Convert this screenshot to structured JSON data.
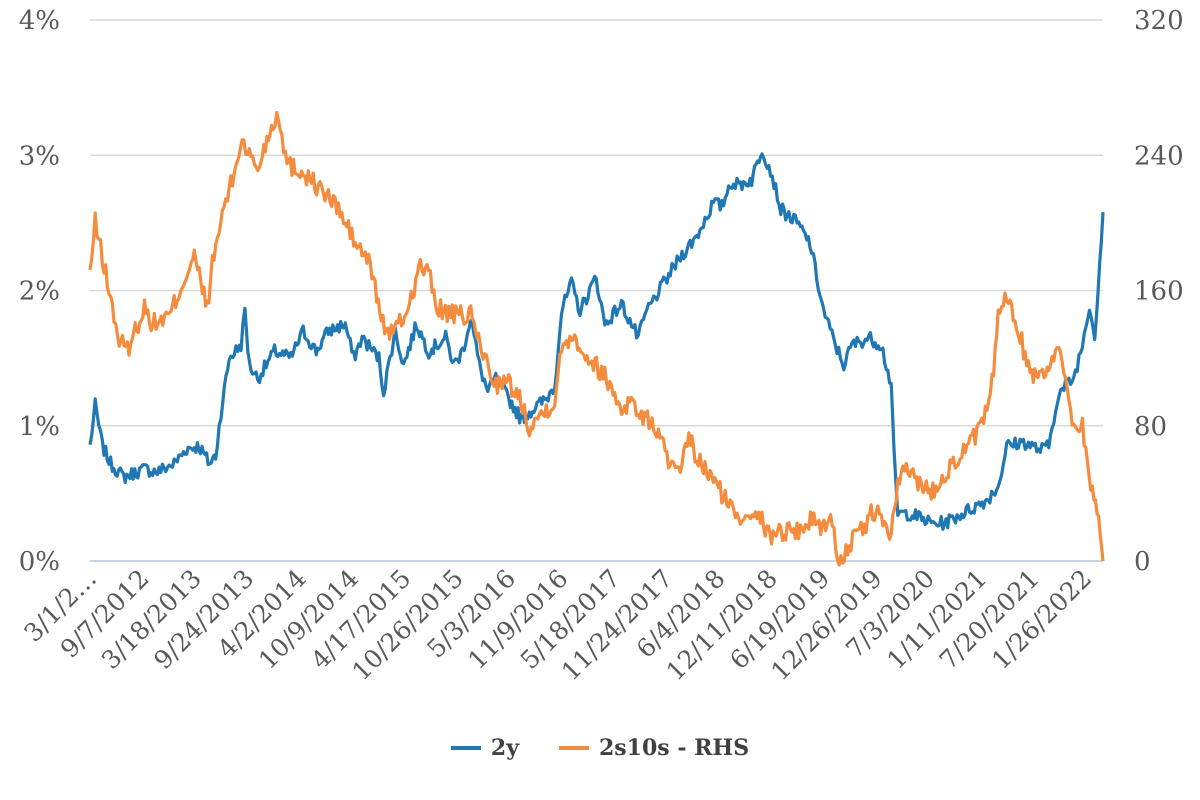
{
  "chart_data": {
    "type": "line",
    "x_range": [
      "3/1/2012",
      "3/31/2022"
    ],
    "x_tick_labels": [
      "3/1/2…",
      "9/7/2012",
      "3/18/2013",
      "9/24/2013",
      "4/2/2014",
      "10/9/2014",
      "4/17/2015",
      "10/26/2015",
      "5/3/2016",
      "11/9/2016",
      "5/18/2017",
      "11/24/2017",
      "6/4/2018",
      "12/11/2018",
      "6/19/2019",
      "12/26/2019",
      "7/3/2020",
      "1/11/2021",
      "7/20/2021",
      "1/26/2022"
    ],
    "y_left": {
      "ticks": [
        "0%",
        "1%",
        "2%",
        "3%",
        "4%"
      ],
      "range": [
        0,
        4
      ],
      "unit": "%"
    },
    "y_right": {
      "ticks": [
        "0",
        "80",
        "160",
        "240",
        "320"
      ],
      "range": [
        0,
        320
      ]
    },
    "grid": true,
    "legend_position": "bottom",
    "series": [
      {
        "name": "2y",
        "axis": "left",
        "color": "#1f77b4",
        "points": [
          [
            "2012-03-01",
            0.85
          ],
          [
            "2012-03-20",
            1.15
          ],
          [
            "2012-04-15",
            0.85
          ],
          [
            "2012-05-15",
            0.72
          ],
          [
            "2012-07-01",
            0.62
          ],
          [
            "2012-09-15",
            0.68
          ],
          [
            "2012-11-01",
            0.66
          ],
          [
            "2013-01-01",
            0.72
          ],
          [
            "2013-02-15",
            0.83
          ],
          [
            "2013-04-01",
            0.85
          ],
          [
            "2013-05-10",
            0.72
          ],
          [
            "2013-06-01",
            0.78
          ],
          [
            "2013-06-20",
            1.1
          ],
          [
            "2013-07-20",
            1.5
          ],
          [
            "2013-09-01",
            1.6
          ],
          [
            "2013-09-15",
            1.85
          ],
          [
            "2013-10-01",
            1.45
          ],
          [
            "2013-11-01",
            1.35
          ],
          [
            "2014-01-01",
            1.55
          ],
          [
            "2014-03-01",
            1.5
          ],
          [
            "2014-04-15",
            1.7
          ],
          [
            "2014-06-01",
            1.55
          ],
          [
            "2014-07-15",
            1.7
          ],
          [
            "2014-09-15",
            1.75
          ],
          [
            "2014-10-15",
            1.5
          ],
          [
            "2014-11-15",
            1.65
          ],
          [
            "2015-01-15",
            1.5
          ],
          [
            "2015-02-01",
            1.25
          ],
          [
            "2015-03-15",
            1.7
          ],
          [
            "2015-04-15",
            1.45
          ],
          [
            "2015-06-01",
            1.75
          ],
          [
            "2015-07-15",
            1.55
          ],
          [
            "2015-09-15",
            1.65
          ],
          [
            "2015-10-15",
            1.45
          ],
          [
            "2015-11-15",
            1.55
          ],
          [
            "2015-12-15",
            1.8
          ],
          [
            "2016-01-15",
            1.45
          ],
          [
            "2016-02-15",
            1.25
          ],
          [
            "2016-03-15",
            1.35
          ],
          [
            "2016-05-01",
            1.2
          ],
          [
            "2016-06-15",
            1.05
          ],
          [
            "2016-07-15",
            1.1
          ],
          [
            "2016-09-15",
            1.2
          ],
          [
            "2016-10-15",
            1.3
          ],
          [
            "2016-11-09",
            1.85
          ],
          [
            "2016-12-15",
            2.05
          ],
          [
            "2017-01-15",
            1.85
          ],
          [
            "2017-03-15",
            2.1
          ],
          [
            "2017-04-15",
            1.75
          ],
          [
            "2017-06-15",
            1.9
          ],
          [
            "2017-08-15",
            1.65
          ],
          [
            "2017-09-15",
            1.85
          ],
          [
            "2017-11-15",
            2.05
          ],
          [
            "2018-01-15",
            2.25
          ],
          [
            "2018-03-15",
            2.4
          ],
          [
            "2018-05-15",
            2.65
          ],
          [
            "2018-06-15",
            2.62
          ],
          [
            "2018-07-15",
            2.8
          ],
          [
            "2018-08-15",
            2.78
          ],
          [
            "2018-10-01",
            2.82
          ],
          [
            "2018-11-08",
            3.05
          ],
          [
            "2018-12-15",
            2.85
          ],
          [
            "2019-01-15",
            2.6
          ],
          [
            "2019-03-15",
            2.5
          ],
          [
            "2019-05-01",
            2.35
          ],
          [
            "2019-06-19",
            1.85
          ],
          [
            "2019-08-01",
            1.6
          ],
          [
            "2019-09-01",
            1.45
          ],
          [
            "2019-10-01",
            1.6
          ],
          [
            "2019-12-01",
            1.65
          ],
          [
            "2020-01-15",
            1.6
          ],
          [
            "2020-02-20",
            1.3
          ],
          [
            "2020-03-01",
            0.8
          ],
          [
            "2020-03-15",
            0.35
          ],
          [
            "2020-05-01",
            0.35
          ],
          [
            "2020-07-15",
            0.28
          ],
          [
            "2020-09-01",
            0.28
          ],
          [
            "2020-12-01",
            0.38
          ],
          [
            "2021-02-01",
            0.45
          ],
          [
            "2021-03-15",
            0.55
          ],
          [
            "2021-04-15",
            0.85
          ],
          [
            "2021-06-15",
            0.88
          ],
          [
            "2021-08-15",
            0.82
          ],
          [
            "2021-09-15",
            0.85
          ],
          [
            "2021-10-15",
            1.2
          ],
          [
            "2021-11-15",
            1.3
          ],
          [
            "2021-12-15",
            1.35
          ],
          [
            "2022-01-15",
            1.6
          ],
          [
            "2022-02-10",
            1.9
          ],
          [
            "2022-03-01",
            1.65
          ],
          [
            "2022-03-31",
            2.58
          ]
        ]
      },
      {
        "name": "2s10s - RHS",
        "axis": "right",
        "color": "#f58b3c",
        "points": [
          [
            "2012-03-01",
            170
          ],
          [
            "2012-03-20",
            200
          ],
          [
            "2012-04-15",
            180
          ],
          [
            "2012-05-15",
            155
          ],
          [
            "2012-06-15",
            130
          ],
          [
            "2012-07-15",
            125
          ],
          [
            "2012-09-15",
            150
          ],
          [
            "2012-10-15",
            140
          ],
          [
            "2012-12-15",
            145
          ],
          [
            "2013-02-15",
            170
          ],
          [
            "2013-03-15",
            180
          ],
          [
            "2013-05-01",
            150
          ],
          [
            "2013-05-20",
            175
          ],
          [
            "2013-07-01",
            210
          ],
          [
            "2013-08-01",
            225
          ],
          [
            "2013-09-05",
            250
          ],
          [
            "2013-10-01",
            240
          ],
          [
            "2013-11-01",
            232
          ],
          [
            "2013-12-15",
            255
          ],
          [
            "2014-01-15",
            265
          ],
          [
            "2014-02-15",
            235
          ],
          [
            "2014-04-15",
            230
          ],
          [
            "2014-06-15",
            220
          ],
          [
            "2014-08-15",
            210
          ],
          [
            "2014-10-15",
            190
          ],
          [
            "2014-12-15",
            175
          ],
          [
            "2015-01-30",
            140
          ],
          [
            "2015-03-01",
            135
          ],
          [
            "2015-04-01",
            140
          ],
          [
            "2015-05-01",
            150
          ],
          [
            "2015-06-15",
            175
          ],
          [
            "2015-07-15",
            170
          ],
          [
            "2015-08-15",
            150
          ],
          [
            "2015-10-15",
            145
          ],
          [
            "2015-12-15",
            145
          ],
          [
            "2016-02-15",
            115
          ],
          [
            "2016-03-15",
            105
          ],
          [
            "2016-05-01",
            105
          ],
          [
            "2016-06-15",
            95
          ],
          [
            "2016-07-15",
            80
          ],
          [
            "2016-08-15",
            85
          ],
          [
            "2016-10-15",
            95
          ],
          [
            "2016-11-09",
            125
          ],
          [
            "2016-12-15",
            135
          ],
          [
            "2017-02-15",
            120
          ],
          [
            "2017-04-15",
            110
          ],
          [
            "2017-06-15",
            90
          ],
          [
            "2017-07-15",
            95
          ],
          [
            "2017-09-01",
            85
          ],
          [
            "2017-10-15",
            80
          ],
          [
            "2017-12-15",
            55
          ],
          [
            "2018-01-15",
            50
          ],
          [
            "2018-02-15",
            75
          ],
          [
            "2018-03-15",
            60
          ],
          [
            "2018-05-15",
            48
          ],
          [
            "2018-07-15",
            32
          ],
          [
            "2018-08-15",
            25
          ],
          [
            "2018-10-15",
            32
          ],
          [
            "2018-12-01",
            15
          ],
          [
            "2019-01-15",
            18
          ],
          [
            "2019-03-15",
            18
          ],
          [
            "2019-05-15",
            25
          ],
          [
            "2019-06-15",
            20
          ],
          [
            "2019-07-15",
            25
          ],
          [
            "2019-08-15",
            0
          ],
          [
            "2019-09-15",
            8
          ],
          [
            "2019-11-15",
            20
          ],
          [
            "2019-12-15",
            30
          ],
          [
            "2020-01-15",
            25
          ],
          [
            "2020-02-20",
            15
          ],
          [
            "2020-03-15",
            45
          ],
          [
            "2020-04-15",
            55
          ],
          [
            "2020-06-15",
            45
          ],
          [
            "2020-07-15",
            40
          ],
          [
            "2020-09-15",
            55
          ],
          [
            "2020-11-15",
            65
          ],
          [
            "2021-01-15",
            80
          ],
          [
            "2021-02-15",
            95
          ],
          [
            "2021-03-15",
            145
          ],
          [
            "2021-04-15",
            155
          ],
          [
            "2021-05-15",
            145
          ],
          [
            "2021-06-15",
            125
          ],
          [
            "2021-07-15",
            110
          ],
          [
            "2021-09-15",
            115
          ],
          [
            "2021-10-15",
            125
          ],
          [
            "2021-11-15",
            110
          ],
          [
            "2021-12-15",
            80
          ],
          [
            "2022-01-15",
            80
          ],
          [
            "2022-02-15",
            45
          ],
          [
            "2022-03-15",
            25
          ],
          [
            "2022-03-31",
            0
          ]
        ]
      }
    ]
  }
}
